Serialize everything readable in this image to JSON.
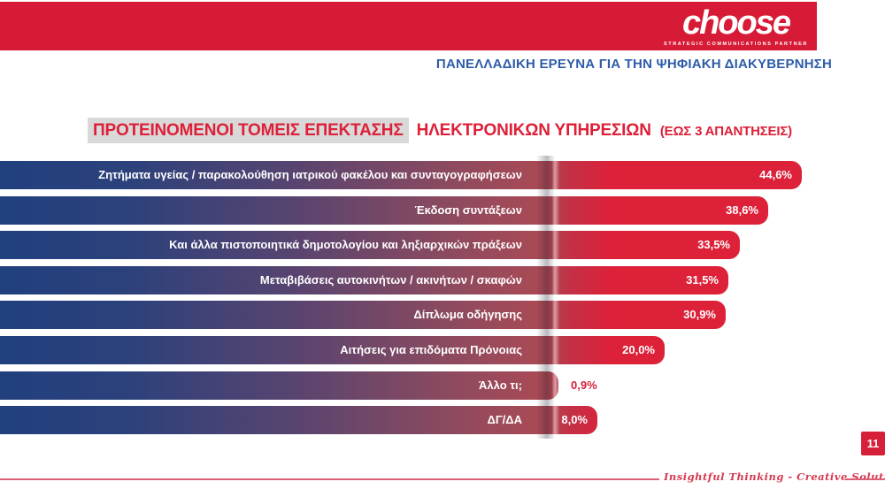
{
  "header": {
    "logo_name": "choose",
    "logo_tagline": "STRATEGIC COMMUNICATIONS PARTNER",
    "subtitle": "ΠΑΝΕΛΛΑΔΙΚΗ ΕΡΕΥΝΑ ΓΙΑ ΤΗΝ ΨΗΦΙΑΚΗ ΔΙΑΚΥΒΕΡΝΗΣΗ"
  },
  "title": {
    "highlighted": "ΠΡΟΤΕΙΝΟΜΕΝΟΙ ΤΟΜΕΙΣ ΕΠΕΚΤΑΣΗΣ",
    "rest": "ΗΛΕΚΤΡΟΝΙΚΩΝ ΥΠΗΡΕΣΙΩΝ",
    "suffix": "(ΕΩΣ 3 ΑΠΑΝΤΗΣΕΙΣ)"
  },
  "chart_data": {
    "type": "bar",
    "orientation": "horizontal",
    "title": "ΠΡΟΤΕΙΝΟΜΕΝΟΙ ΤΟΜΕΙΣ ΕΠΕΚΤΑΣΗΣ ΗΛΕΚΤΡΟΝΙΚΩΝ ΥΠΗΡΕΣΙΩΝ (ΕΩΣ 3 ΑΠΑΝΤΗΣΕΙΣ)",
    "categories": [
      "Ζητήματα υγείας / παρακολούθηση ιατρικού φακέλου και συνταγογραφήσεων",
      "Έκδοση συντάξεων",
      "Και άλλα πιστοποιητικά δημοτολογίου και ληξιαρχικών πράξεων",
      "Μεταβιβάσεις αυτοκινήτων / ακινήτων / σκαφών",
      "Δίπλωμα οδήγησης",
      "Αιτήσεις για επιδόματα Πρόνοιας",
      "Άλλο τι;",
      "ΔΓ/ΔΑ"
    ],
    "values": [
      44.6,
      38.6,
      33.5,
      31.5,
      30.9,
      20.0,
      0.9,
      8.0
    ],
    "value_labels": [
      "44,6%",
      "38,6%",
      "33,5%",
      "31,5%",
      "30,9%",
      "20,0%",
      "0,9%",
      "8,0%"
    ],
    "xlim": [
      0,
      50
    ],
    "legend": "none",
    "grid": "off",
    "bar_gradient": [
      "#21407E",
      "#AB4A55",
      "#DC2139"
    ]
  },
  "footer": {
    "tagline": "Insightful Thinking - Creative Solutions",
    "page": "11"
  },
  "colors": {
    "brand_red": "#D71A35",
    "bar_blue": "#21407E",
    "bar_red": "#DC2139",
    "subtitle_blue": "#2E5CA9",
    "title_red": "#DD2038",
    "highlight_gray": "#D9D9D9",
    "footer_pink": "#DD5F75"
  }
}
